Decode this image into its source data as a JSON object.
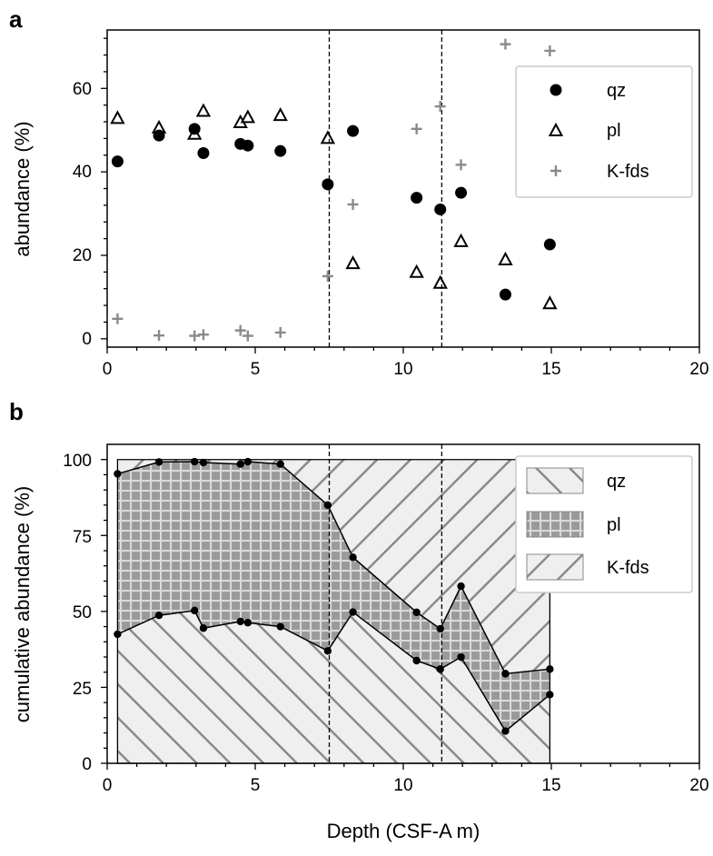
{
  "colors": {
    "qz_marker": "#000000",
    "pl_marker": "#000000",
    "kfds_marker": "#8a8a8a",
    "hatch_line": "#8a8a8a",
    "area_fill": "#efefef",
    "pl_fill": "#9a9a9a",
    "pl_grid": "#d9d9d9",
    "legend_border": "#cccccc"
  },
  "chart_data": [
    {
      "panel": "a",
      "type": "scatter",
      "xlabel": "",
      "ylabel": "abundance (%)",
      "xlim": [
        0,
        20
      ],
      "ylim": [
        -2,
        74
      ],
      "xticks": [
        0,
        5,
        10,
        15,
        20
      ],
      "yticks": [
        0,
        20,
        40,
        60
      ],
      "vlines": [
        7.5,
        11.3
      ],
      "legend_position": "top-right",
      "series": [
        {
          "name": "qz",
          "marker": "circle",
          "x": [
            0.35,
            1.75,
            2.95,
            3.25,
            4.5,
            4.75,
            5.85,
            7.45,
            8.3,
            10.45,
            11.25,
            11.95,
            13.45,
            14.95
          ],
          "y": [
            42.5,
            48.7,
            50.3,
            44.5,
            46.7,
            46.3,
            45.0,
            37.0,
            49.8,
            33.8,
            31.0,
            35.0,
            10.6,
            22.6
          ]
        },
        {
          "name": "pl",
          "marker": "triangle",
          "x": [
            0.35,
            1.75,
            2.95,
            3.25,
            4.5,
            4.75,
            5.85,
            7.45,
            8.3,
            10.45,
            11.25,
            11.95,
            13.45,
            14.95
          ],
          "y": [
            52.8,
            50.5,
            49.0,
            54.5,
            51.8,
            53.0,
            53.5,
            48.0,
            18.0,
            15.9,
            13.3,
            23.3,
            18.9,
            8.4
          ]
        },
        {
          "name": "K-fds",
          "marker": "plus",
          "x": [
            0.35,
            1.75,
            2.95,
            3.25,
            4.5,
            4.75,
            5.85,
            7.45,
            8.3,
            10.45,
            11.25,
            11.95,
            13.45,
            14.95
          ],
          "y": [
            4.8,
            0.8,
            0.7,
            1.0,
            2.0,
            0.7,
            1.5,
            15.0,
            32.2,
            50.3,
            55.7,
            41.7,
            70.6,
            69.0
          ]
        }
      ]
    },
    {
      "panel": "b",
      "type": "area",
      "xlabel": "Depth (CSF-A m)",
      "ylabel": "cumulative abundance (%)",
      "xlim": [
        0,
        20
      ],
      "ylim": [
        0,
        105
      ],
      "xticks": [
        0,
        5,
        10,
        15,
        20
      ],
      "yticks": [
        0,
        25,
        50,
        75,
        100
      ],
      "vlines": [
        7.5,
        11.3
      ],
      "legend_position": "top-right",
      "x": [
        0.35,
        1.75,
        2.95,
        3.25,
        4.5,
        4.75,
        5.85,
        7.45,
        8.3,
        10.45,
        11.25,
        11.95,
        13.45,
        14.95
      ],
      "series": [
        {
          "name": "qz",
          "cumulative": [
            42.5,
            48.7,
            50.3,
            44.5,
            46.7,
            46.3,
            45.0,
            37.0,
            49.8,
            33.8,
            31.0,
            35.0,
            10.6,
            22.6
          ]
        },
        {
          "name": "pl",
          "cumulative": [
            95.3,
            99.2,
            99.3,
            99.0,
            98.5,
            99.3,
            98.5,
            85.0,
            67.8,
            49.7,
            44.3,
            58.3,
            29.5,
            31.0
          ]
        },
        {
          "name": "K-fds",
          "cumulative": [
            100,
            100,
            100,
            100,
            100,
            100,
            100,
            100,
            100,
            100,
            100,
            100,
            100,
            100
          ]
        }
      ]
    }
  ],
  "labels": {
    "panel_a": "a",
    "panel_b": "b",
    "a_ylabel": "abundance (%)",
    "b_ylabel": "cumulative abundance (%)",
    "b_xlabel": "Depth (CSF-A m)",
    "a_xticks": [
      "0",
      "5",
      "10",
      "15",
      "20"
    ],
    "a_yticks": [
      "0",
      "20",
      "40",
      "60"
    ],
    "b_xticks": [
      "0",
      "5",
      "10",
      "15",
      "20"
    ],
    "b_yticks": [
      "0",
      "25",
      "50",
      "75",
      "100"
    ],
    "legend_a": [
      "qz",
      "pl",
      "K-fds"
    ],
    "legend_b": [
      "qz",
      "pl",
      "K-fds"
    ]
  }
}
